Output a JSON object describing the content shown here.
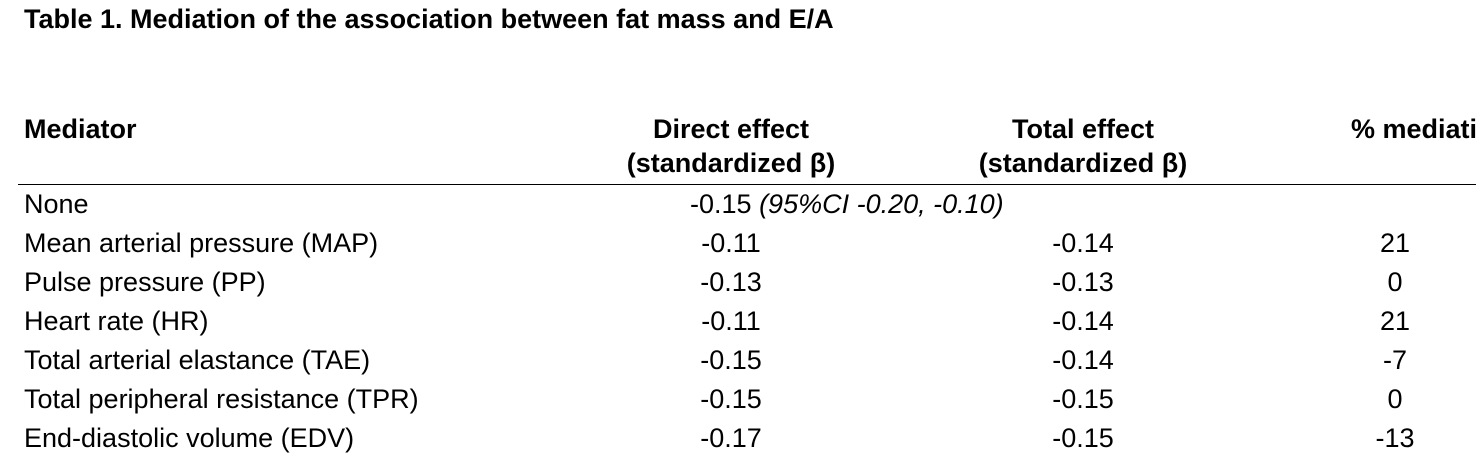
{
  "caption": "Table 1. Mediation of the association between fat mass and E/A",
  "table": {
    "headers": {
      "mediator": "Mediator",
      "direct": [
        "Direct effect",
        "(standardized β)"
      ],
      "total": [
        "Total effect",
        "(standardized β)"
      ],
      "mediation": "% mediation"
    },
    "none_row": {
      "label": "None",
      "value": "-0.15",
      "ci": "(95%CI -0.20, -0.10)"
    },
    "rows": [
      {
        "mediator": "Mean arterial pressure (MAP)",
        "direct": "-0.11",
        "total": "-0.14",
        "mediation": "21"
      },
      {
        "mediator": "Pulse pressure (PP)",
        "direct": "-0.13",
        "total": "-0.13",
        "mediation": "0"
      },
      {
        "mediator": "Heart rate (HR)",
        "direct": "-0.11",
        "total": "-0.14",
        "mediation": "21"
      },
      {
        "mediator": "Total arterial elastance (TAE)",
        "direct": "-0.15",
        "total": "-0.14",
        "mediation": "-7"
      },
      {
        "mediator": "Total peripheral resistance (TPR)",
        "direct": "-0.15",
        "total": "-0.15",
        "mediation": "0"
      },
      {
        "mediator": "End-diastolic volume (EDV)",
        "direct": "-0.17",
        "total": "-0.15",
        "mediation": "-13"
      }
    ]
  }
}
